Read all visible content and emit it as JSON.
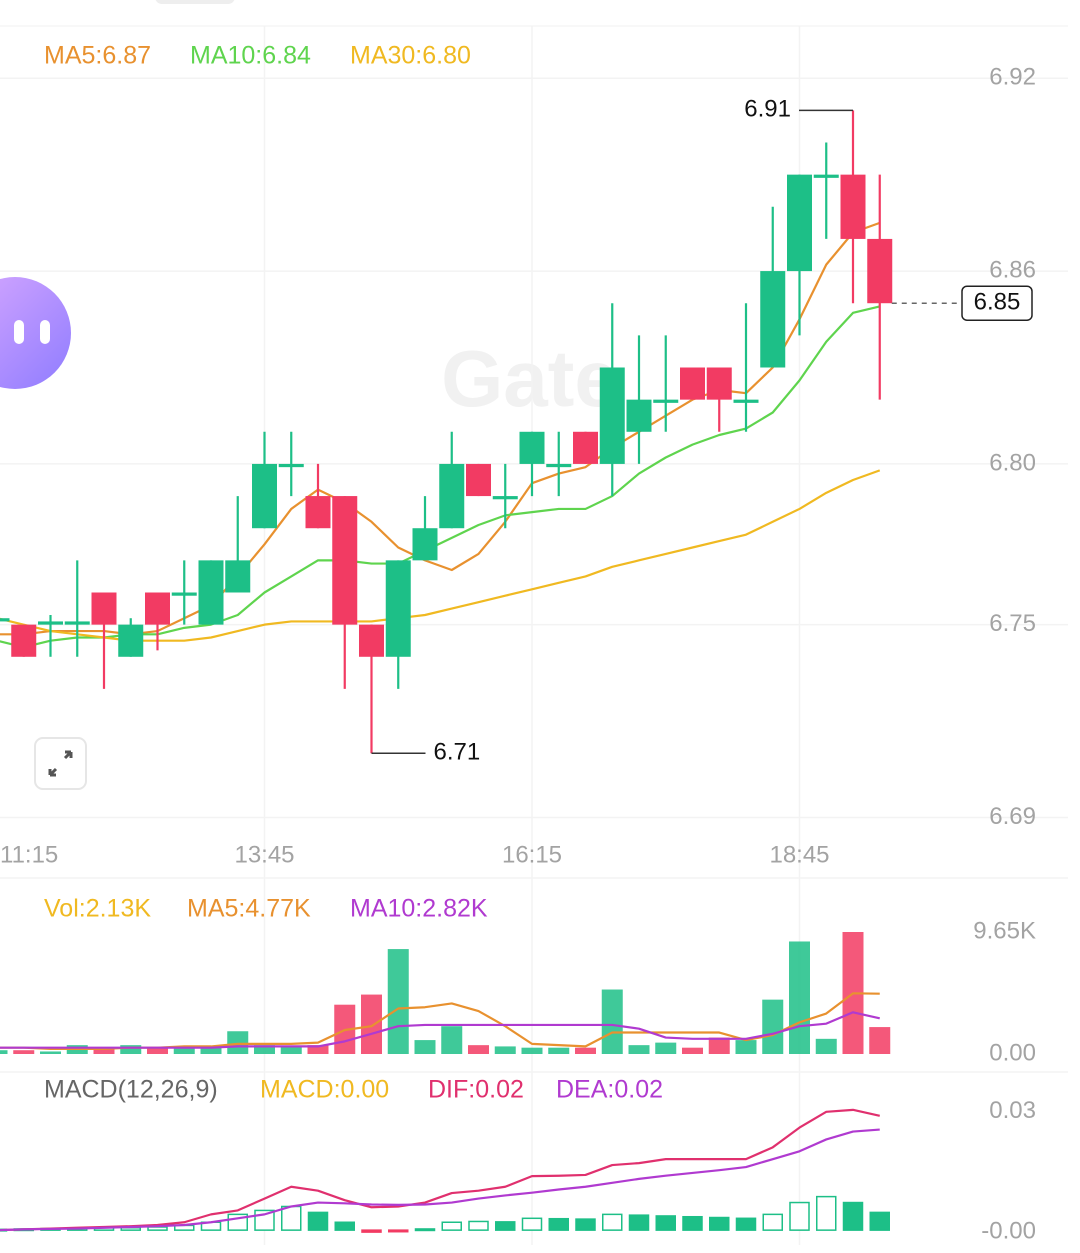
{
  "chart_data": [
    {
      "type": "candlestick",
      "categories": [
        "11:15",
        null,
        null,
        null,
        null,
        null,
        null,
        null,
        null,
        null,
        "13:45",
        null,
        null,
        null,
        null,
        null,
        null,
        null,
        null,
        null,
        "16:15",
        null,
        null,
        null,
        null,
        null,
        null,
        null,
        null,
        null,
        "18:45",
        null,
        null,
        null
      ],
      "open": [
        6.751,
        6.75,
        6.75,
        6.75,
        6.76,
        6.74,
        6.76,
        6.759,
        6.75,
        6.76,
        6.78,
        6.799,
        6.79,
        6.79,
        6.75,
        6.74,
        6.77,
        6.78,
        6.8,
        6.789,
        6.8,
        6.799,
        6.81,
        6.8,
        6.81,
        6.819,
        6.83,
        6.83,
        6.819,
        6.83,
        6.86,
        6.889,
        6.89,
        6.87
      ],
      "high": [
        6.753,
        6.75,
        6.753,
        6.77,
        6.76,
        6.752,
        6.76,
        6.77,
        6.77,
        6.79,
        6.81,
        6.81,
        6.8,
        6.79,
        6.75,
        6.77,
        6.79,
        6.81,
        6.8,
        6.8,
        6.81,
        6.81,
        6.81,
        6.85,
        6.84,
        6.84,
        6.83,
        6.83,
        6.85,
        6.88,
        6.89,
        6.9,
        6.91,
        6.89
      ],
      "low": [
        6.75,
        6.74,
        6.74,
        6.74,
        6.73,
        6.74,
        6.742,
        6.75,
        6.75,
        6.76,
        6.78,
        6.79,
        6.78,
        6.73,
        6.71,
        6.73,
        6.77,
        6.78,
        6.79,
        6.78,
        6.79,
        6.79,
        6.8,
        6.79,
        6.8,
        6.81,
        6.82,
        6.81,
        6.81,
        6.83,
        6.84,
        6.87,
        6.85,
        6.82
      ],
      "close": [
        6.752,
        6.74,
        6.751,
        6.751,
        6.75,
        6.75,
        6.75,
        6.76,
        6.77,
        6.77,
        6.8,
        6.8,
        6.78,
        6.75,
        6.74,
        6.77,
        6.78,
        6.8,
        6.79,
        6.79,
        6.81,
        6.8,
        6.8,
        6.83,
        6.82,
        6.82,
        6.82,
        6.82,
        6.82,
        6.86,
        6.89,
        6.89,
        6.87,
        6.85
      ],
      "up_color": "#1dbf87",
      "down_color": "#f23b63",
      "series": [
        {
          "name": "MA5:6.87",
          "color": "#e8912f",
          "values": [
            6.747,
            6.747,
            6.748,
            6.748,
            6.748,
            6.747,
            6.748,
            6.752,
            6.756,
            6.765,
            6.775,
            6.786,
            6.792,
            6.788,
            6.782,
            6.774,
            6.77,
            6.767,
            6.772,
            6.782,
            6.794,
            6.797,
            6.799,
            6.805,
            6.81,
            6.815,
            6.82,
            6.823,
            6.822,
            6.83,
            6.845,
            6.862,
            6.872,
            6.875
          ]
        },
        {
          "name": "MA10:6.84",
          "color": "#5fd44e",
          "values": [
            6.745,
            6.743,
            6.745,
            6.746,
            6.746,
            6.747,
            6.747,
            6.749,
            6.75,
            6.753,
            6.76,
            6.765,
            6.77,
            6.77,
            6.769,
            6.769,
            6.773,
            6.777,
            6.781,
            6.784,
            6.785,
            6.786,
            6.786,
            6.79,
            6.797,
            6.802,
            6.806,
            6.809,
            6.811,
            6.816,
            6.826,
            6.838,
            6.847,
            6.849
          ]
        },
        {
          "name": "MA30:6.80",
          "color": "#f0b921",
          "values": [
            6.752,
            6.75,
            6.748,
            6.747,
            6.746,
            6.745,
            6.745,
            6.745,
            6.746,
            6.748,
            6.75,
            6.751,
            6.751,
            6.751,
            6.751,
            6.752,
            6.753,
            6.755,
            6.757,
            6.759,
            6.761,
            6.763,
            6.765,
            6.768,
            6.77,
            6.772,
            6.774,
            6.776,
            6.778,
            6.782,
            6.786,
            6.791,
            6.795,
            6.798
          ]
        }
      ],
      "ylim": [
        6.683,
        6.935
      ],
      "yticks": [
        6.92,
        6.86,
        {
          "value": 6.8,
          "label": "6.80"
        },
        6.75,
        6.69
      ],
      "grid": true,
      "watermark": "Gate"
    },
    {
      "type": "bar",
      "values": [
        0.3,
        0.3,
        0.2,
        0.7,
        0.5,
        0.7,
        0.5,
        0.5,
        0.5,
        1.8,
        0.7,
        0.6,
        0.7,
        3.9,
        4.7,
        8.3,
        1.1,
        2.2,
        0.7,
        0.6,
        0.5,
        0.5,
        0.5,
        5.1,
        0.7,
        0.9,
        0.5,
        1.3,
        1.1,
        4.3,
        8.9,
        1.2,
        9.65,
        2.13
      ],
      "name": "Vol:2.13K",
      "name_color": "#f0b921",
      "series": [
        {
          "name": "MA5:4.77K",
          "color": "#e8912f",
          "values": [
            0.5,
            0.5,
            0.4,
            0.4,
            0.4,
            0.5,
            0.5,
            0.6,
            0.6,
            0.8,
            0.8,
            0.8,
            0.9,
            1.9,
            2.2,
            3.6,
            3.7,
            4.0,
            3.4,
            2.2,
            0.8,
            0.7,
            0.6,
            1.7,
            1.7,
            1.7,
            1.7,
            1.7,
            1.1,
            1.5,
            2.5,
            3.2,
            4.8,
            4.77
          ]
        },
        {
          "name": "MA10:2.82K",
          "color": "#b03ad0",
          "values": [
            0.5,
            0.5,
            0.5,
            0.5,
            0.5,
            0.5,
            0.5,
            0.5,
            0.5,
            0.6,
            0.6,
            0.6,
            0.6,
            1.0,
            1.6,
            2.2,
            2.3,
            2.3,
            2.3,
            2.3,
            2.3,
            2.3,
            2.3,
            2.3,
            2.0,
            1.3,
            1.2,
            1.2,
            1.2,
            1.6,
            2.2,
            2.4,
            3.3,
            2.82
          ]
        }
      ],
      "ylim": [
        0,
        9.65
      ],
      "yticks": [
        {
          "value": 9.65,
          "label": "9.65K"
        },
        {
          "value": 0,
          "label": "0.00"
        }
      ]
    },
    {
      "type": "macd",
      "title": "MACD(12,26,9)",
      "name": "MACD:0.00",
      "name_color": "#f0b921",
      "values": [
        0.0002,
        0.0003,
        0.0004,
        0.0005,
        0.0006,
        0.0006,
        0.0008,
        0.0012,
        0.002,
        0.004,
        0.005,
        0.006,
        0.0045,
        0.002,
        -0.0005,
        -0.0004,
        0.0003,
        0.002,
        0.0022,
        0.0021,
        0.003,
        0.0029,
        0.0028,
        0.004,
        0.0038,
        0.0036,
        0.0034,
        0.0032,
        0.003,
        0.004,
        0.007,
        0.0085,
        0.007,
        0.0045
      ],
      "series": [
        {
          "name": "DIF:0.02",
          "color": "#e0306e",
          "values": [
            0.0,
            0.0002,
            0.0004,
            0.0006,
            0.0008,
            0.001,
            0.0013,
            0.002,
            0.004,
            0.005,
            0.008,
            0.011,
            0.01,
            0.0076,
            0.0058,
            0.006,
            0.007,
            0.0094,
            0.01,
            0.011,
            0.0137,
            0.0138,
            0.014,
            0.0165,
            0.017,
            0.018,
            0.018,
            0.018,
            0.018,
            0.021,
            0.026,
            0.03,
            0.0305,
            0.029
          ]
        },
        {
          "name": "DEA:0.02",
          "color": "#b03ad0",
          "values": [
            0.0,
            0.0002,
            0.0003,
            0.0004,
            0.0006,
            0.0008,
            0.001,
            0.0013,
            0.002,
            0.003,
            0.004,
            0.006,
            0.007,
            0.0068,
            0.0065,
            0.0064,
            0.0065,
            0.007,
            0.008,
            0.0088,
            0.0095,
            0.0103,
            0.011,
            0.012,
            0.013,
            0.0138,
            0.0145,
            0.0152,
            0.016,
            0.018,
            0.02,
            0.023,
            0.025,
            0.0255
          ]
        }
      ],
      "ylim": [
        -0.0025,
        0.033
      ],
      "yticks": [
        0.03,
        {
          "value": -0.0005,
          "label": "-0.00"
        }
      ]
    }
  ]
}
